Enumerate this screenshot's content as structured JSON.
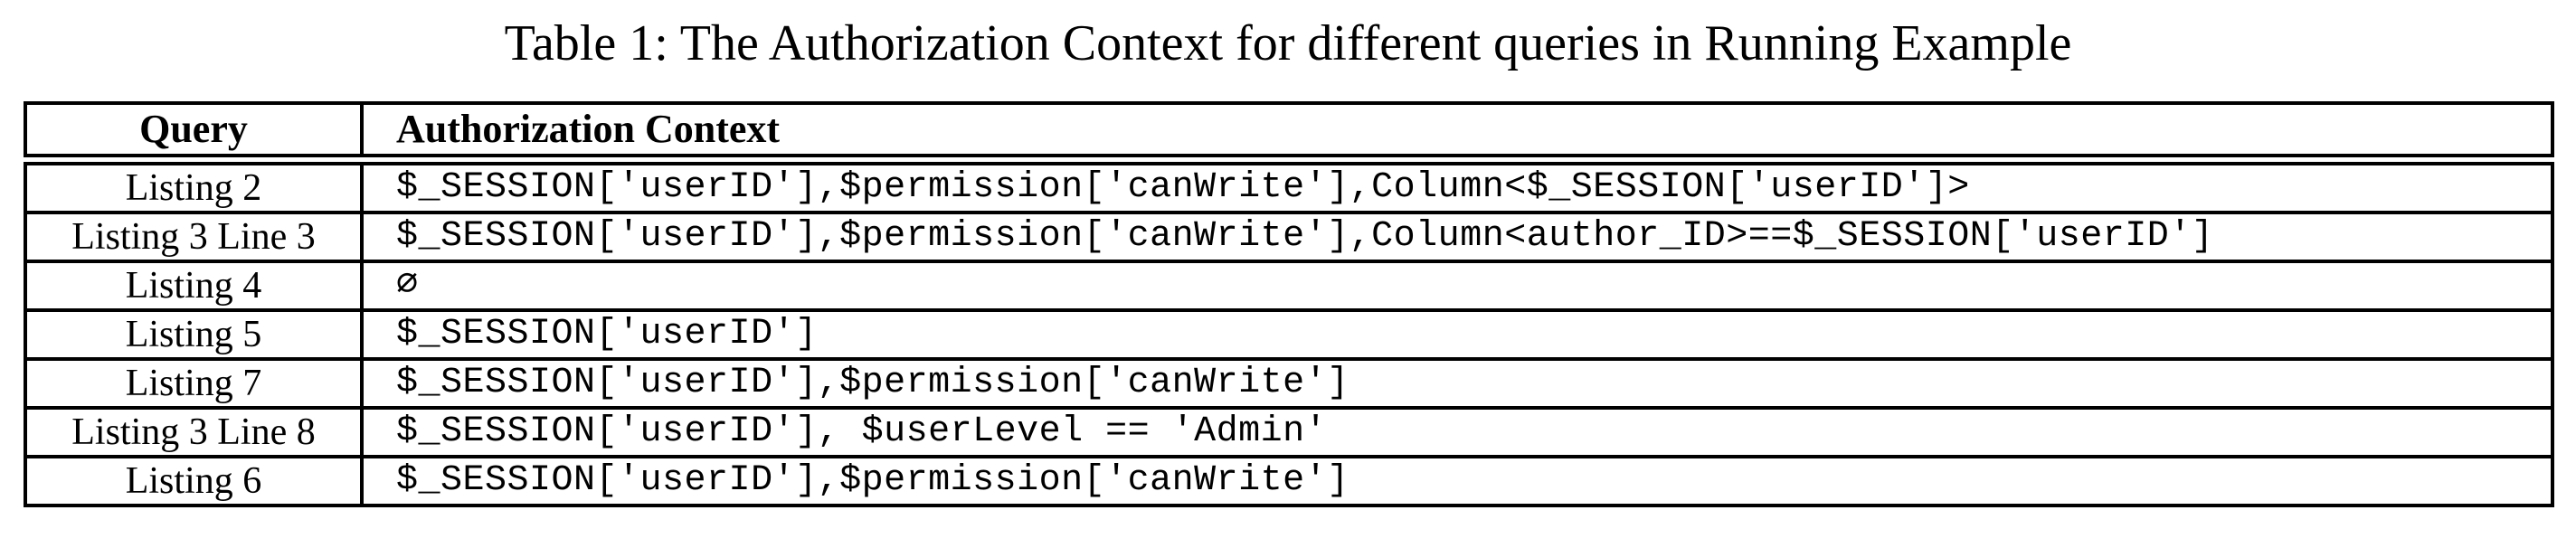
{
  "caption": "Table 1: The Authorization Context for different queries in Running Example",
  "table": {
    "headers": {
      "query": "Query",
      "context": "Authorization Context"
    },
    "rows": [
      {
        "query": "Listing 2",
        "context": "$_SESSION[′userID′],$permission[′canWrite′],Column<$_SESSION[′userID′]>"
      },
      {
        "query": "Listing 3 Line 3",
        "context": "$_SESSION[′userID′],$permission[′canWrite′],Column<author_ID>==$_SESSION[′userID′]"
      },
      {
        "query": "Listing 4",
        "context": "∅"
      },
      {
        "query": "Listing 5",
        "context": "$_SESSION[′userID′]"
      },
      {
        "query": "Listing 7",
        "context": "$_SESSION[′userID′],$permission[′canWrite′]"
      },
      {
        "query": "Listing 3 Line 8",
        "context": "$_SESSION[′userID′], $userLevel == ′Admin′"
      },
      {
        "query": "Listing 6",
        "context": "$_SESSION[′userID′],$permission[′canWrite′]"
      }
    ]
  }
}
